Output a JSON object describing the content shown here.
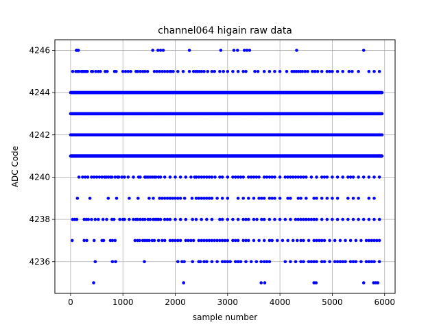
{
  "chart_data": {
    "type": "scatter",
    "title": "channel064 higain raw data",
    "xlabel": "sample number",
    "ylabel": "ADC Code",
    "xlim": [
      -300,
      6200
    ],
    "ylim": [
      4234.5,
      4246.5
    ],
    "xticks": [
      0,
      1000,
      2000,
      3000,
      4000,
      5000,
      6000
    ],
    "yticks": [
      4236,
      4238,
      4240,
      4242,
      4244,
      4246
    ],
    "grid": true,
    "marker_color": "#0000ff",
    "x_range": [
      0,
      5950
    ],
    "dense_levels": [
      4241,
      4242,
      4243,
      4244
    ],
    "levels": [
      {
        "y": 4246,
        "x": [
          110,
          130,
          150,
          1570,
          1670,
          1720,
          1770,
          2270,
          2870,
          3120,
          3190,
          3320,
          3370,
          3420,
          4320,
          5600
        ]
      },
      {
        "y": 4245,
        "x": [
          40,
          100,
          130,
          160,
          210,
          230,
          250,
          280,
          300,
          320,
          400,
          420,
          480,
          530,
          570,
          660,
          700,
          840,
          870,
          1000,
          1050,
          1100,
          1150,
          1250,
          1280,
          1330,
          1380,
          1420,
          1470,
          1600,
          1650,
          1700,
          1750,
          1800,
          1850,
          1900,
          1920,
          1960,
          2050,
          2150,
          2270,
          2350,
          2390,
          2420,
          2460,
          2500,
          2550,
          2620,
          2700,
          2750,
          2850,
          2920,
          3000,
          3100,
          3200,
          3300,
          3350,
          3520,
          3580,
          3700,
          3800,
          3900,
          4000,
          4130,
          4230,
          4270,
          4310,
          4350,
          4390,
          4430,
          4480,
          4530,
          4620,
          4670,
          4720,
          4800,
          4900,
          4950,
          5000,
          5100,
          5200,
          5320,
          5380,
          5500,
          5700,
          5800,
          5900
        ]
      },
      {
        "y": 4240,
        "x": [
          160,
          230,
          280,
          330,
          400,
          450,
          500,
          550,
          600,
          650,
          680,
          720,
          760,
          790,
          850,
          900,
          920,
          980,
          1030,
          1100,
          1200,
          1300,
          1330,
          1420,
          1440,
          1480,
          1520,
          1560,
          1600,
          1630,
          1680,
          1720,
          1800,
          1900,
          2000,
          2100,
          2200,
          2300,
          2370,
          2400,
          2450,
          2500,
          2550,
          2600,
          2650,
          2700,
          2760,
          2850,
          2900,
          3000,
          3100,
          3150,
          3200,
          3250,
          3300,
          3400,
          3450,
          3500,
          3550,
          3600,
          3700,
          3750,
          3800,
          3850,
          3900,
          4000,
          4100,
          4150,
          4200,
          4250,
          4300,
          4350,
          4400,
          4450,
          4500,
          4600,
          4700,
          4800,
          4850,
          4900,
          5000,
          5100,
          5200,
          5300,
          5350,
          5400,
          5500,
          5600,
          5700,
          5800,
          5900
        ]
      },
      {
        "y": 4239,
        "x": [
          130,
          370,
          720,
          880,
          1120,
          1290,
          1500,
          1580,
          1700,
          1750,
          1800,
          1850,
          1900,
          1950,
          2000,
          2050,
          2100,
          2180,
          2320,
          2400,
          2450,
          2500,
          2550,
          2600,
          2650,
          2700,
          2800,
          2900,
          3000,
          3200,
          3300,
          3400,
          3500,
          3600,
          3650,
          3700,
          3800,
          3850,
          3900,
          4000,
          4150,
          4200,
          4350,
          4400,
          4500,
          4650,
          4700,
          4800,
          4900,
          5000,
          5100,
          5300,
          5400,
          5500,
          5700,
          5800
        ]
      },
      {
        "y": 4238,
        "x": [
          40,
          80,
          120,
          260,
          300,
          340,
          400,
          470,
          530,
          620,
          690,
          790,
          830,
          940,
          1000,
          1030,
          1120,
          1200,
          1250,
          1280,
          1330,
          1380,
          1420,
          1480,
          1520,
          1580,
          1620,
          1650,
          1680,
          1720,
          1800,
          1850,
          1900,
          2000,
          2100,
          2200,
          2330,
          2400,
          2500,
          2600,
          2700,
          2850,
          2900,
          3000,
          3100,
          3200,
          3300,
          3350,
          3400,
          3500,
          3560,
          3650,
          3700,
          3800,
          3900,
          4000,
          4100,
          4200,
          4300,
          4350,
          4400,
          4450,
          4500,
          4550,
          4600,
          4650,
          4700,
          4800,
          4900,
          5000,
          5100,
          5200,
          5300,
          5400,
          5500,
          5600,
          5700,
          5800,
          5900
        ]
      },
      {
        "y": 4237,
        "x": [
          30,
          260,
          310,
          450,
          600,
          630,
          760,
          800,
          850,
          1230,
          1280,
          1320,
          1380,
          1420,
          1460,
          1500,
          1560,
          1600,
          1680,
          1750,
          1800,
          1900,
          1950,
          2000,
          2050,
          2100,
          2200,
          2250,
          2300,
          2350,
          2450,
          2500,
          2550,
          2600,
          2650,
          2700,
          2750,
          2800,
          2850,
          2900,
          2950,
          3000,
          3100,
          3150,
          3200,
          3300,
          3350,
          3400,
          3500,
          3600,
          3700,
          3800,
          3850,
          3950,
          4050,
          4150,
          4250,
          4330,
          4400,
          4450,
          4550,
          4650,
          4700,
          4750,
          4800,
          4850,
          4950,
          5050,
          5150,
          5250,
          5350,
          5450,
          5550,
          5650,
          5700,
          5750,
          5800,
          5850,
          5900
        ]
      },
      {
        "y": 4236,
        "x": [
          470,
          800,
          860,
          1410,
          2050,
          2130,
          2170,
          2330,
          2450,
          2480,
          2550,
          2600,
          2700,
          2800,
          2900,
          2950,
          3000,
          3050,
          3150,
          3200,
          3250,
          3350,
          3450,
          3550,
          3640,
          3700,
          3750,
          3800,
          4100,
          4200,
          4300,
          4400,
          4450,
          4550,
          4600,
          4650,
          4700,
          4800,
          4850,
          4950,
          5050,
          5100,
          5150,
          5200,
          5250,
          5350,
          5400,
          5450,
          5550,
          5650,
          5700,
          5750,
          5800,
          5900
        ]
      },
      {
        "y": 4235,
        "x": [
          440,
          2160,
          3640,
          3710,
          4650,
          4690,
          5600,
          5790,
          5830,
          5870
        ]
      }
    ]
  }
}
